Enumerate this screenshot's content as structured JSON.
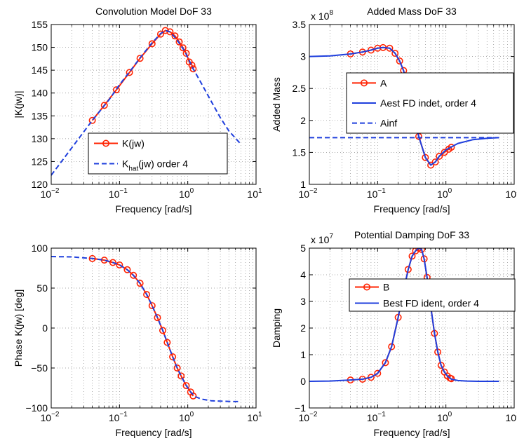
{
  "chart_data": [
    {
      "type": "line",
      "title": "Convolution Model DoF 33",
      "xlabel": "Frequency [rad/s]",
      "ylabel": "|K(jw)|",
      "xscale": "log",
      "xlim": [
        0.01,
        10
      ],
      "ylim": [
        120,
        155
      ],
      "xticks": [
        0.01,
        0.1,
        1,
        10
      ],
      "yticks": [
        120,
        125,
        130,
        135,
        140,
        145,
        150,
        155
      ],
      "yticklabels": [
        "120",
        "125",
        "130",
        "135",
        "140",
        "145",
        "150",
        "155"
      ],
      "grid": true,
      "legend": "lower-center",
      "colors": {
        "measured": "#ff2200",
        "fit": "#1f3fdd"
      },
      "series": [
        {
          "name": "K(jw)",
          "legend_main": "K(jw)",
          "style": "line-circles",
          "color": "#ff2200",
          "x": [
            0.04,
            0.06,
            0.09,
            0.14,
            0.2,
            0.3,
            0.4,
            0.47,
            0.55,
            0.65,
            0.75,
            0.85,
            0.95,
            1.05,
            1.15,
            1.2
          ],
          "y": [
            134,
            137.3,
            140.7,
            144.5,
            147.6,
            150.8,
            152.9,
            153.7,
            153.4,
            152.5,
            151.2,
            149.9,
            148.7,
            146.8,
            146.1,
            145.3
          ]
        },
        {
          "name": "K_hat(jw) order 4",
          "legend_main": "K",
          "legend_sub": "hat",
          "legend_rest": "(jw) order 4",
          "style": "dashed",
          "color": "#1f3fdd",
          "x": [
            0.01,
            0.02,
            0.04,
            0.07,
            0.1,
            0.15,
            0.2,
            0.3,
            0.4,
            0.47,
            0.55,
            0.7,
            0.9,
            1.2,
            1.6,
            2.2,
            3.0,
            4.0,
            6.0
          ],
          "y": [
            122,
            128,
            134,
            138.5,
            141.8,
            145.2,
            147.7,
            151,
            153,
            153.7,
            153.4,
            151.6,
            149.2,
            145.3,
            142,
            138.2,
            134.6,
            131.7,
            128.8
          ]
        }
      ]
    },
    {
      "type": "line",
      "title": "Added Mass DoF 33",
      "xlabel": "Frequency [rad/s]",
      "ylabel": "Added Mass",
      "xscale": "log",
      "xlim": [
        0.01,
        10
      ],
      "ylim": [
        1,
        3.5
      ],
      "xticks": [
        0.01,
        0.1,
        1,
        10
      ],
      "yticks": [
        1,
        1.5,
        2,
        2.5,
        3,
        3.5
      ],
      "yticklabels": [
        "1",
        "1.5",
        "2",
        "2.5",
        "3",
        "3.5"
      ],
      "y_scale_factor": {
        "base": "x 10",
        "exponent": "8"
      },
      "grid": true,
      "legend": "center",
      "series": [
        {
          "name": "A",
          "legend_main": "A",
          "style": "line-circles",
          "color": "#ff2200",
          "x": [
            0.04,
            0.06,
            0.08,
            0.1,
            0.12,
            0.15,
            0.18,
            0.21,
            0.24,
            0.28,
            0.33,
            0.4,
            0.5,
            0.6,
            0.7,
            0.8,
            0.95,
            1.1,
            1.2
          ],
          "y": [
            3.04,
            3.07,
            3.1,
            3.13,
            3.14,
            3.13,
            3.05,
            2.93,
            2.78,
            2.5,
            2.15,
            1.75,
            1.42,
            1.3,
            1.35,
            1.44,
            1.5,
            1.55,
            1.58
          ]
        },
        {
          "name": "Aest FD indet, order 4",
          "legend_main": "Aest FD indet, order 4",
          "style": "solid",
          "color": "#1f3fdd",
          "x": [
            0.01,
            0.02,
            0.04,
            0.06,
            0.08,
            0.1,
            0.12,
            0.15,
            0.18,
            0.21,
            0.24,
            0.28,
            0.33,
            0.4,
            0.5,
            0.6,
            0.7,
            0.8,
            1.0,
            1.5,
            2.5,
            4.0,
            6.0
          ],
          "y": [
            3.0,
            3.01,
            3.04,
            3.07,
            3.1,
            3.13,
            3.14,
            3.13,
            3.05,
            2.93,
            2.78,
            2.5,
            2.15,
            1.75,
            1.42,
            1.3,
            1.35,
            1.44,
            1.54,
            1.64,
            1.7,
            1.72,
            1.73
          ]
        },
        {
          "name": "Ainf",
          "legend_main": "Ainf",
          "style": "dashed",
          "color": "#1f3fdd",
          "x": [
            0.01,
            6.0
          ],
          "y": [
            1.73,
            1.73
          ]
        }
      ]
    },
    {
      "type": "line",
      "title": "",
      "xlabel": "Frequency [rad/s]",
      "ylabel": "Phase K(jw) [deg]",
      "xscale": "log",
      "xlim": [
        0.01,
        10
      ],
      "ylim": [
        -100,
        100
      ],
      "xticks": [
        0.01,
        0.1,
        1,
        10
      ],
      "yticks": [
        -100,
        -50,
        0,
        50,
        100
      ],
      "yticklabels": [
        "−100",
        "−50",
        "0",
        "50",
        "100"
      ],
      "grid": true,
      "legend": "none",
      "series": [
        {
          "name": "",
          "style": "line-circles",
          "color": "#ff2200",
          "x": [
            0.04,
            0.06,
            0.08,
            0.1,
            0.13,
            0.16,
            0.2,
            0.25,
            0.3,
            0.36,
            0.43,
            0.5,
            0.6,
            0.7,
            0.8,
            0.95,
            1.1,
            1.2
          ],
          "y": [
            87,
            85,
            82,
            79,
            73,
            66,
            56,
            42,
            28,
            13,
            -3,
            -18,
            -36,
            -50,
            -60,
            -72,
            -80,
            -85
          ]
        },
        {
          "name": "",
          "style": "dashed",
          "color": "#1f3fdd",
          "x": [
            0.01,
            0.02,
            0.04,
            0.06,
            0.08,
            0.1,
            0.13,
            0.16,
            0.2,
            0.25,
            0.3,
            0.36,
            0.43,
            0.5,
            0.6,
            0.7,
            0.8,
            0.95,
            1.1,
            1.3,
            1.6,
            2.2,
            3.0,
            4.5,
            6.0
          ],
          "y": [
            89.5,
            89,
            87,
            85,
            82,
            79,
            73,
            66,
            56,
            42,
            28,
            13,
            -3,
            -18,
            -36,
            -50,
            -60,
            -72,
            -80,
            -86,
            -89,
            -91,
            -91.5,
            -92,
            -92
          ]
        }
      ]
    },
    {
      "type": "line",
      "title": "Potential Damping DoF 33",
      "xlabel": "Frequency [rad/s]",
      "ylabel": "Damping",
      "xscale": "log",
      "xlim": [
        0.01,
        10
      ],
      "ylim": [
        -1,
        5
      ],
      "xticks": [
        0.01,
        0.1,
        1,
        10
      ],
      "yticks": [
        -1,
        0,
        1,
        2,
        3,
        4,
        5
      ],
      "yticklabels": [
        "−1",
        "0",
        "1",
        "2",
        "3",
        "4",
        "5"
      ],
      "y_scale_factor": {
        "base": "x 10",
        "exponent": "7"
      },
      "grid": true,
      "legend": "upper-right",
      "series": [
        {
          "name": "B",
          "legend_main": "B",
          "style": "line-circles",
          "color": "#ff2200",
          "x": [
            0.04,
            0.06,
            0.08,
            0.1,
            0.13,
            0.16,
            0.2,
            0.24,
            0.28,
            0.32,
            0.36,
            0.4,
            0.44,
            0.48,
            0.53,
            0.6,
            0.68,
            0.76,
            0.85,
            0.95,
            1.05,
            1.15,
            1.2
          ],
          "y": [
            0.05,
            0.08,
            0.15,
            0.3,
            0.7,
            1.3,
            2.4,
            3.4,
            4.2,
            4.7,
            4.9,
            5.0,
            4.95,
            4.6,
            3.9,
            2.8,
            1.8,
            1.1,
            0.6,
            0.35,
            0.2,
            0.12,
            0.1
          ]
        },
        {
          "name": "Best FD ident, order 4",
          "legend_main": "Best FD ident, order 4",
          "style": "solid",
          "color": "#1f3fdd",
          "x": [
            0.01,
            0.02,
            0.04,
            0.06,
            0.08,
            0.1,
            0.13,
            0.16,
            0.2,
            0.24,
            0.28,
            0.32,
            0.36,
            0.4,
            0.44,
            0.48,
            0.53,
            0.6,
            0.68,
            0.76,
            0.85,
            0.95,
            1.05,
            1.2,
            1.5,
            2.0,
            3.0,
            6.0
          ],
          "y": [
            0,
            0.01,
            0.05,
            0.08,
            0.15,
            0.3,
            0.7,
            1.3,
            2.4,
            3.4,
            4.2,
            4.7,
            4.9,
            5.0,
            4.95,
            4.6,
            3.9,
            2.8,
            1.8,
            1.1,
            0.6,
            0.35,
            0.2,
            0.08,
            0.03,
            0.01,
            0,
            0
          ]
        }
      ]
    }
  ]
}
